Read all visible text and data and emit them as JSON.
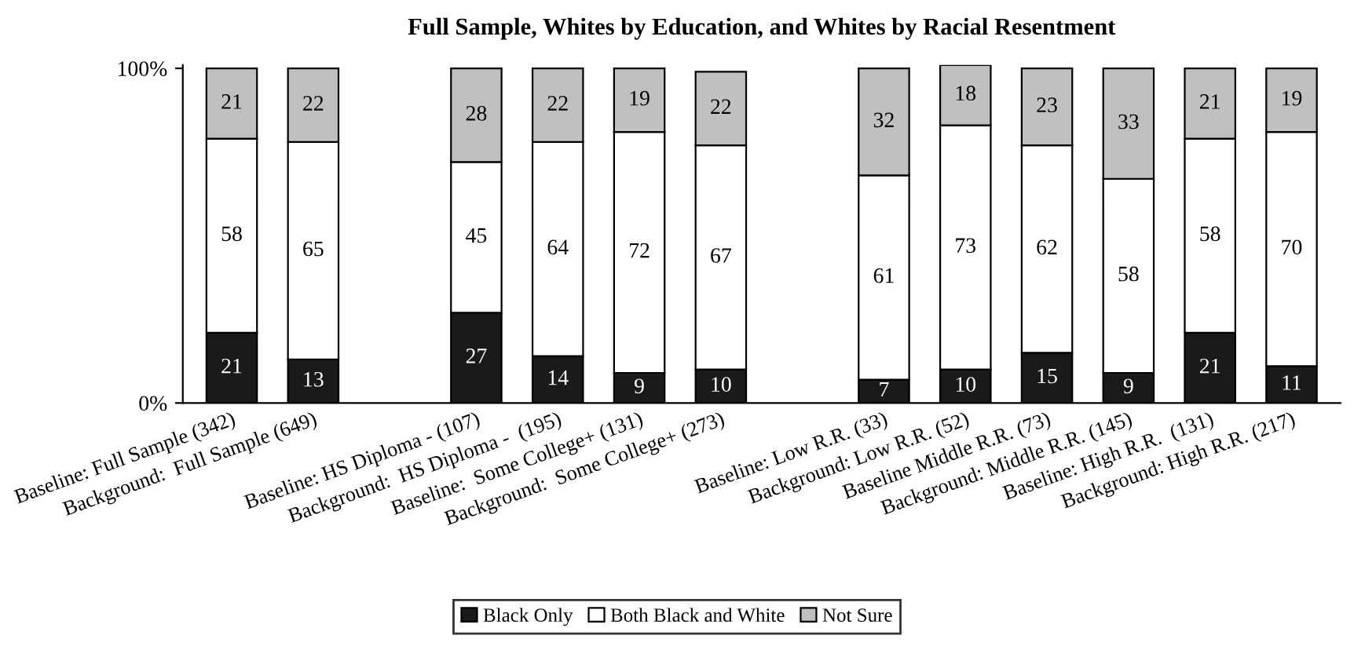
{
  "chart_data": {
    "type": "bar",
    "stacked": true,
    "title": "Full Sample, Whites by Education, and Whites by Racial Resentment",
    "categories": [
      "Baseline: Full Sample (342)",
      "Background:  Full Sample (649)",
      null,
      "Baseline: HS Diploma - (107)",
      "Background:  HS Diploma -  (195)",
      "Baseline:  Some College+ (131)",
      "Background:  Some College+ (273)",
      null,
      "Baseline: Low R.R. (33)",
      "Background: Low R.R. (52)",
      "Baseline Middle R.R. (73)",
      "Background: Middle R.R. (145)",
      "Baseline: High R.R.  (131)",
      "Background: High R.R. (217)"
    ],
    "series": [
      {
        "name": "Black Only",
        "color": "#1a1a1a",
        "values": [
          21,
          13,
          null,
          27,
          14,
          9,
          10,
          null,
          7,
          10,
          15,
          9,
          21,
          11
        ]
      },
      {
        "name": "Both Black and White",
        "color": "#ffffff",
        "values": [
          58,
          65,
          null,
          45,
          64,
          72,
          67,
          null,
          61,
          73,
          62,
          58,
          58,
          70
        ]
      },
      {
        "name": "Not Sure",
        "color": "#c0c0c0",
        "values": [
          21,
          22,
          null,
          28,
          22,
          19,
          22,
          null,
          32,
          18,
          23,
          33,
          21,
          19
        ]
      }
    ],
    "ylim": [
      0,
      101
    ],
    "yticks": [
      {
        "value": 0,
        "label": "0%"
      },
      {
        "value": 100,
        "label": "100%"
      }
    ],
    "data_labels": true,
    "legend": "bottom",
    "grid": false
  }
}
